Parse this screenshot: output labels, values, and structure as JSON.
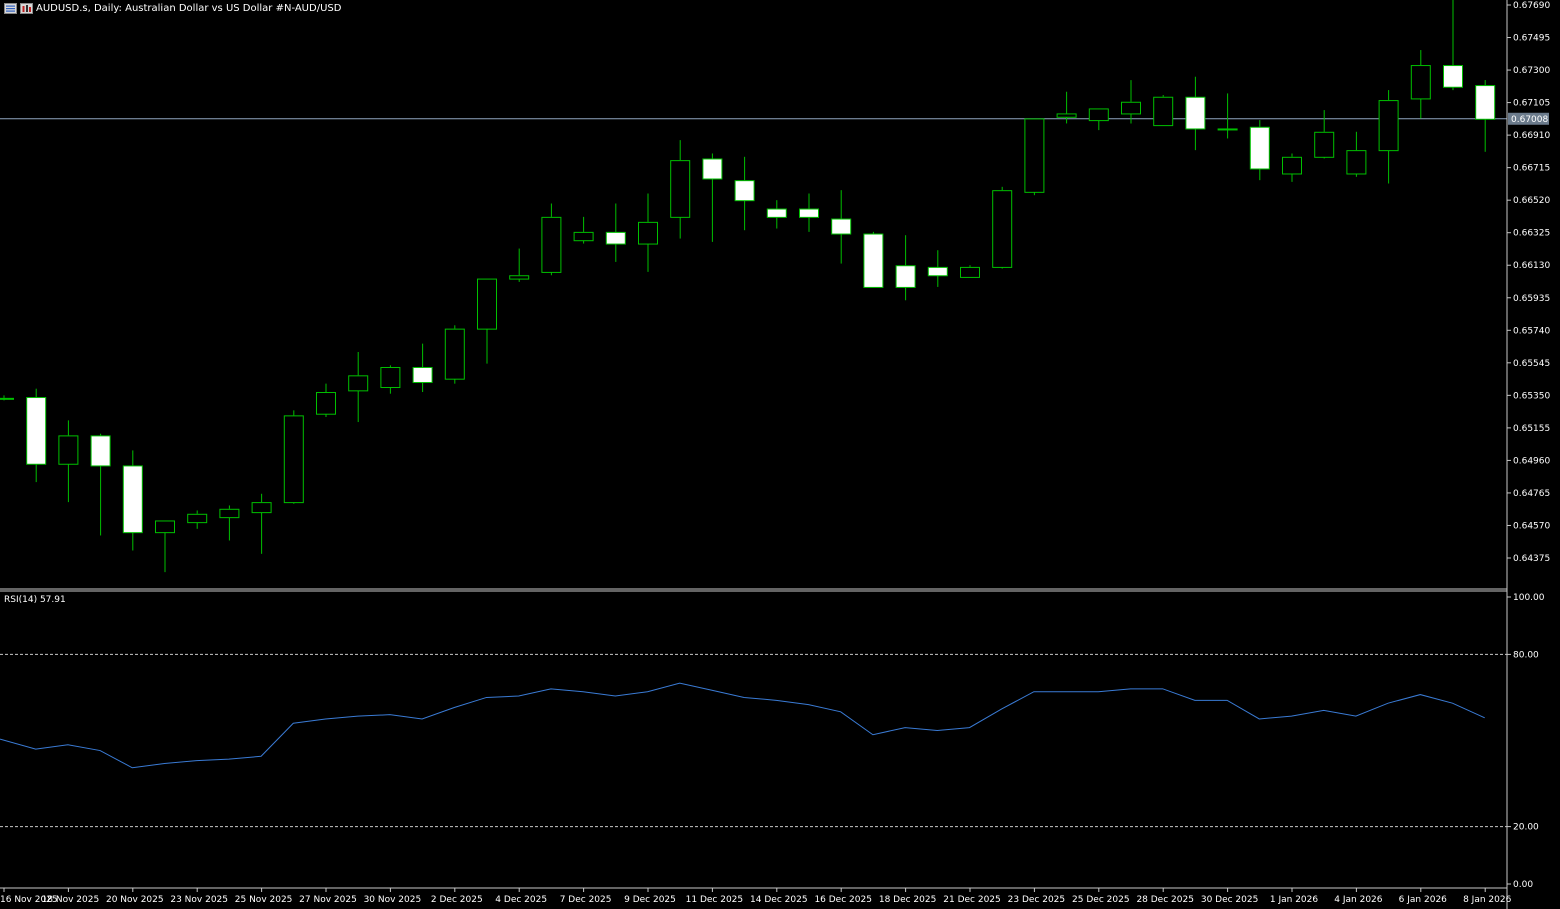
{
  "header": {
    "symbol_text": "AUDUSD.s, Daily:  Australian Dollar vs US Dollar #N-AUD/USD",
    "icons": [
      "window-list-icon",
      "chart-window-icon"
    ]
  },
  "rsi": {
    "label": "RSI(14) 57.91"
  },
  "colors": {
    "background": "#000000",
    "candle_outline": "#00c000",
    "bull_fill": "#000000",
    "bear_fill": "#ffffff",
    "rsi_line": "#3a7bd5",
    "price_line": "#8fa6bf",
    "axis": "#c8c8c8"
  },
  "chart_data": [
    {
      "type": "candlestick",
      "title": "AUDUSD.s, Daily:  Australian Dollar vs US Dollar #N-AUD/USD",
      "ylim": [
        0.64265,
        0.678
      ],
      "yticks": [
        "0.67690",
        "0.67495",
        "0.67300",
        "0.67105",
        "0.66910",
        "0.66715",
        "0.66520",
        "0.66325",
        "0.66130",
        "0.65935",
        "0.65740",
        "0.65545",
        "0.65350",
        "0.65155",
        "0.64960",
        "0.64765",
        "0.64570",
        "0.64375"
      ],
      "current_price": "0.67008",
      "grid": false,
      "candles": [
        {
          "o": 0.6533,
          "h": 0.6535,
          "l": 0.6532,
          "c": 0.65335
        },
        {
          "o": 0.6534,
          "h": 0.6539,
          "l": 0.6483,
          "c": 0.6494
        },
        {
          "o": 0.6494,
          "h": 0.652,
          "l": 0.6471,
          "c": 0.6511
        },
        {
          "o": 0.6511,
          "h": 0.6512,
          "l": 0.6451,
          "c": 0.6493
        },
        {
          "o": 0.6493,
          "h": 0.6502,
          "l": 0.6442,
          "c": 0.6453
        },
        {
          "o": 0.6453,
          "h": 0.646,
          "l": 0.6429,
          "c": 0.646
        },
        {
          "o": 0.6459,
          "h": 0.6466,
          "l": 0.6455,
          "c": 0.6464
        },
        {
          "o": 0.6462,
          "h": 0.6469,
          "l": 0.6448,
          "c": 0.6467
        },
        {
          "o": 0.6465,
          "h": 0.6476,
          "l": 0.644,
          "c": 0.6471
        },
        {
          "o": 0.6471,
          "h": 0.6526,
          "l": 0.647,
          "c": 0.6523
        },
        {
          "o": 0.6524,
          "h": 0.6542,
          "l": 0.6522,
          "c": 0.6537
        },
        {
          "o": 0.6538,
          "h": 0.6561,
          "l": 0.6519,
          "c": 0.6547
        },
        {
          "o": 0.654,
          "h": 0.6553,
          "l": 0.6536,
          "c": 0.6552
        },
        {
          "o": 0.6552,
          "h": 0.6566,
          "l": 0.6537,
          "c": 0.6543
        },
        {
          "o": 0.6545,
          "h": 0.6577,
          "l": 0.6542,
          "c": 0.6575
        },
        {
          "o": 0.6575,
          "h": 0.6605,
          "l": 0.6554,
          "c": 0.6605
        },
        {
          "o": 0.6605,
          "h": 0.6623,
          "l": 0.6603,
          "c": 0.6607
        },
        {
          "o": 0.6609,
          "h": 0.665,
          "l": 0.6607,
          "c": 0.6642
        },
        {
          "o": 0.6628,
          "h": 0.6642,
          "l": 0.6626,
          "c": 0.6633
        },
        {
          "o": 0.6633,
          "h": 0.665,
          "l": 0.6615,
          "c": 0.6626
        },
        {
          "o": 0.6626,
          "h": 0.6656,
          "l": 0.6609,
          "c": 0.6639
        },
        {
          "o": 0.6642,
          "h": 0.6688,
          "l": 0.6629,
          "c": 0.6676
        },
        {
          "o": 0.6677,
          "h": 0.668,
          "l": 0.6627,
          "c": 0.6665
        },
        {
          "o": 0.6664,
          "h": 0.6678,
          "l": 0.6634,
          "c": 0.6652
        },
        {
          "o": 0.6647,
          "h": 0.6652,
          "l": 0.6635,
          "c": 0.6642
        },
        {
          "o": 0.6647,
          "h": 0.6656,
          "l": 0.6633,
          "c": 0.6642
        },
        {
          "o": 0.6641,
          "h": 0.6658,
          "l": 0.6614,
          "c": 0.6632
        },
        {
          "o": 0.6632,
          "h": 0.6633,
          "l": 0.66,
          "c": 0.66
        },
        {
          "o": 0.6613,
          "h": 0.6631,
          "l": 0.6592,
          "c": 0.66
        },
        {
          "o": 0.6612,
          "h": 0.6622,
          "l": 0.66,
          "c": 0.6607
        },
        {
          "o": 0.6606,
          "h": 0.6613,
          "l": 0.6606,
          "c": 0.6612
        },
        {
          "o": 0.6612,
          "h": 0.666,
          "l": 0.6611,
          "c": 0.6658
        },
        {
          "o": 0.6657,
          "h": 0.6701,
          "l": 0.6655,
          "c": 0.6701
        },
        {
          "o": 0.6702,
          "h": 0.6717,
          "l": 0.6698,
          "c": 0.6704
        },
        {
          "o": 0.67,
          "h": 0.6707,
          "l": 0.6694,
          "c": 0.6707
        },
        {
          "o": 0.6704,
          "h": 0.6724,
          "l": 0.6698,
          "c": 0.6711
        },
        {
          "o": 0.6697,
          "h": 0.6715,
          "l": 0.6697,
          "c": 0.6714
        },
        {
          "o": 0.6714,
          "h": 0.6726,
          "l": 0.6682,
          "c": 0.6695
        },
        {
          "o": 0.6695,
          "h": 0.6716,
          "l": 0.6689,
          "c": 0.6695
        },
        {
          "o": 0.6696,
          "h": 0.67,
          "l": 0.6664,
          "c": 0.6671
        },
        {
          "o": 0.6668,
          "h": 0.668,
          "l": 0.6663,
          "c": 0.6678
        },
        {
          "o": 0.6678,
          "h": 0.6706,
          "l": 0.6677,
          "c": 0.6693
        },
        {
          "o": 0.6668,
          "h": 0.6693,
          "l": 0.6666,
          "c": 0.6682
        },
        {
          "o": 0.6682,
          "h": 0.6718,
          "l": 0.6662,
          "c": 0.6712
        },
        {
          "o": 0.6713,
          "h": 0.6742,
          "l": 0.6701,
          "c": 0.6733
        },
        {
          "o": 0.6733,
          "h": 0.6776,
          "l": 0.6718,
          "c": 0.672
        },
        {
          "o": 0.6721,
          "h": 0.6724,
          "l": 0.6681,
          "c": 0.67008
        }
      ],
      "x_labels": [
        {
          "index": 0,
          "label": "16 Nov 2025"
        },
        {
          "index": 2,
          "label": "18 Nov 2025"
        },
        {
          "index": 4,
          "label": "20 Nov 2025"
        },
        {
          "index": 6,
          "label": "23 Nov 2025"
        },
        {
          "index": 8,
          "label": "25 Nov 2025"
        },
        {
          "index": 10,
          "label": "27 Nov 2025"
        },
        {
          "index": 12,
          "label": "30 Nov 2025"
        },
        {
          "index": 14,
          "label": "2 Dec 2025"
        },
        {
          "index": 16,
          "label": "4 Dec 2025"
        },
        {
          "index": 18,
          "label": "7 Dec 2025"
        },
        {
          "index": 20,
          "label": "9 Dec 2025"
        },
        {
          "index": 22,
          "label": "11 Dec 2025"
        },
        {
          "index": 24,
          "label": "14 Dec 2025"
        },
        {
          "index": 26,
          "label": "16 Dec 2025"
        },
        {
          "index": 28,
          "label": "18 Dec 2025"
        },
        {
          "index": 30,
          "label": "21 Dec 2025"
        },
        {
          "index": 32,
          "label": "23 Dec 2025"
        },
        {
          "index": 34,
          "label": "25 Dec 2025"
        },
        {
          "index": 36,
          "label": "28 Dec 2025"
        },
        {
          "index": 38,
          "label": "30 Dec 2025"
        },
        {
          "index": 40,
          "label": "1 Jan 2026"
        },
        {
          "index": 42,
          "label": "4 Jan 2026"
        },
        {
          "index": 44,
          "label": "6 Jan 2026"
        },
        {
          "index": 46,
          "label": "8 Jan 2026"
        }
      ]
    },
    {
      "type": "line",
      "title": "RSI(14) 57.91",
      "ylim": [
        0,
        100
      ],
      "yticks": [
        "100.00",
        "80.00",
        "20.00",
        "0.00"
      ],
      "levels": [
        80,
        20
      ],
      "series": [
        {
          "name": "RSI(14)",
          "values": [
            50.5,
            47.0,
            48.5,
            46.5,
            40.5,
            42.0,
            43.0,
            43.5,
            44.5,
            56.0,
            57.5,
            58.5,
            59.0,
            57.5,
            61.5,
            65.0,
            65.5,
            68.0,
            67.0,
            65.5,
            67.0,
            70.0,
            67.5,
            65.0,
            64.0,
            62.5,
            60.0,
            52.0,
            54.5,
            53.5,
            54.5,
            61.0,
            67.0,
            67.0,
            67.0,
            68.0,
            68.0,
            64.0,
            64.0,
            57.5,
            58.5,
            60.5,
            58.5,
            63.0,
            66.0,
            63.0,
            57.91
          ]
        }
      ]
    }
  ]
}
